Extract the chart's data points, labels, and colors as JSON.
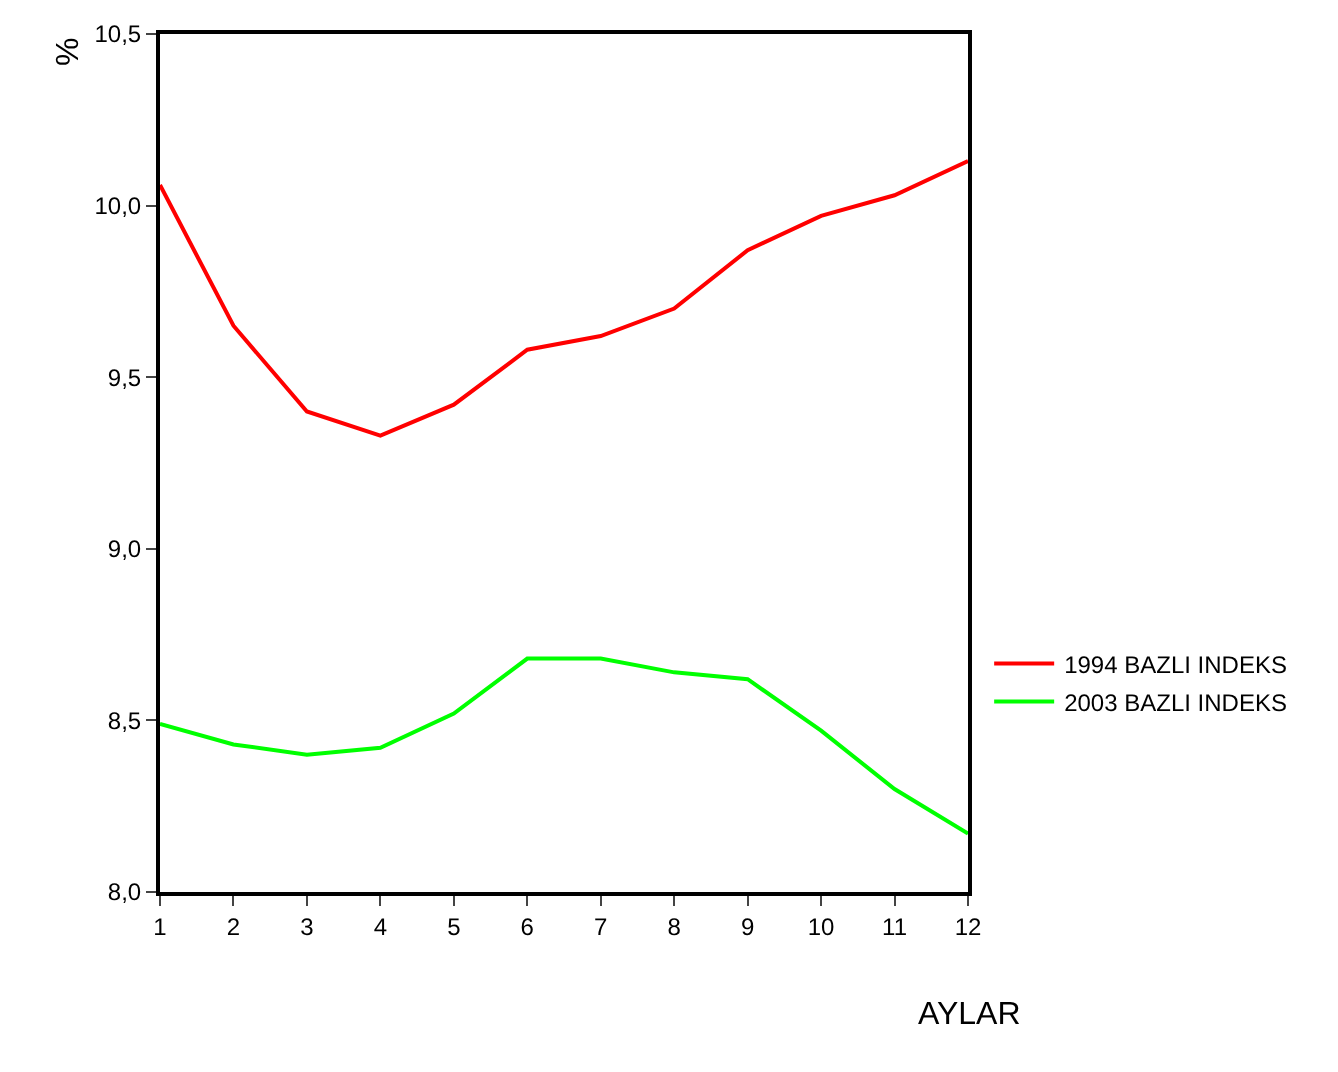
{
  "chart_data": {
    "type": "line",
    "xlabel": "AYLAR",
    "ylabel": "%",
    "x": [
      1,
      2,
      3,
      4,
      5,
      6,
      7,
      8,
      9,
      10,
      11,
      12
    ],
    "series": [
      {
        "name": "1994 BAZLI INDEKS",
        "color": "#ff0000",
        "values": [
          10.06,
          9.65,
          9.4,
          9.33,
          9.42,
          9.58,
          9.62,
          9.7,
          9.87,
          9.97,
          10.03,
          10.13
        ]
      },
      {
        "name": "2003 BAZLI INDEKS",
        "color": "#00ff00",
        "values": [
          8.49,
          8.43,
          8.4,
          8.42,
          8.52,
          8.68,
          8.68,
          8.64,
          8.62,
          8.47,
          8.3,
          8.17
        ]
      }
    ],
    "xlim": [
      1,
      12
    ],
    "xticks": [
      1,
      2,
      3,
      4,
      5,
      6,
      7,
      8,
      9,
      10,
      11,
      12
    ],
    "ylim": [
      8.0,
      10.5
    ],
    "yticks": [
      {
        "value": 8.0,
        "label": "8,0"
      },
      {
        "value": 8.5,
        "label": "8,5"
      },
      {
        "value": 9.0,
        "label": "9,0"
      },
      {
        "value": 9.5,
        "label": "9,5"
      },
      {
        "value": 10.0,
        "label": "10,0"
      },
      {
        "value": 10.5,
        "label": "10,5"
      }
    ],
    "legend": "right",
    "marker": "none",
    "line_style": "solid"
  }
}
